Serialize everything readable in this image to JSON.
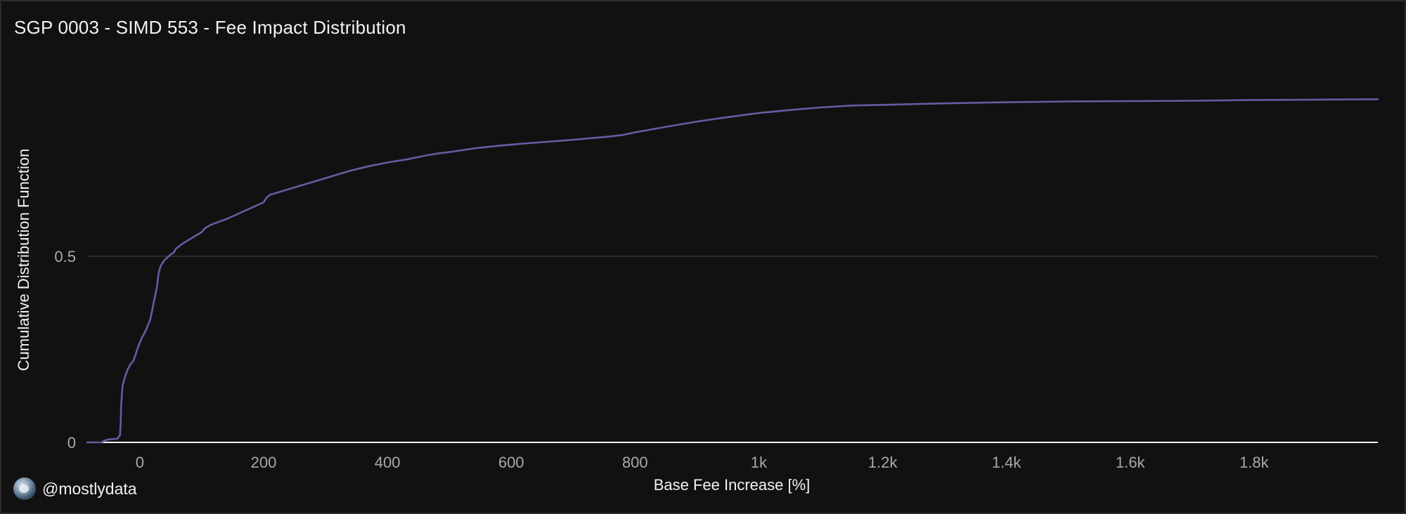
{
  "header": {
    "title": "SGP 0003 - SIMD 553 - Fee Impact Distribution"
  },
  "branding": {
    "handle": "@mostlydata"
  },
  "colors": {
    "background": "#111111",
    "line": "#625ea3",
    "grid": "#3a3a3a",
    "axis": "#f2f2f2",
    "tick_text": "#a9a9a9"
  },
  "chart_data": {
    "type": "line",
    "title": "SGP 0003 - SIMD 553 - Fee Impact Distribution",
    "xlabel": "Base Fee Increase [%]",
    "ylabel": "Cumulative Distribution Function",
    "xlim": [
      -85,
      2000
    ],
    "ylim": [
      0,
      1.0
    ],
    "x_ticks": [
      0,
      200,
      400,
      600,
      800,
      1000,
      1200,
      1400,
      1600,
      1800
    ],
    "x_tick_labels": [
      "0",
      "200",
      "400",
      "600",
      "800",
      "1k",
      "1.2k",
      "1.4k",
      "1.6k",
      "1.8k"
    ],
    "y_ticks": [
      0,
      0.5
    ],
    "y_tick_labels": [
      "0",
      "0.5"
    ],
    "grid": "horizontal",
    "series": [
      {
        "x": [
          -85,
          -62,
          -57,
          -50,
          -36,
          -32,
          -31,
          -30,
          -28,
          -25,
          -22,
          -19,
          -15,
          -10,
          -7,
          -2,
          3,
          8,
          12,
          17,
          23,
          28,
          30,
          32,
          33,
          35,
          40,
          50,
          55,
          58,
          62,
          70,
          80,
          90,
          95,
          100,
          105,
          115,
          140,
          160,
          180,
          200,
          202,
          205,
          210,
          220,
          240,
          260,
          280,
          300,
          320,
          340,
          370,
          400,
          430,
          460,
          480,
          500,
          540,
          580,
          620,
          660,
          700,
          760,
          780,
          800,
          850,
          900,
          950,
          1000,
          1050,
          1100,
          1150,
          1200,
          1300,
          1400,
          1500,
          1600,
          1700,
          1800,
          1900,
          2000
        ],
        "y": [
          0,
          0,
          0.005,
          0.008,
          0.01,
          0.02,
          0.05,
          0.1,
          0.15,
          0.17,
          0.185,
          0.198,
          0.21,
          0.22,
          0.235,
          0.26,
          0.28,
          0.295,
          0.31,
          0.33,
          0.38,
          0.42,
          0.45,
          0.465,
          0.47,
          0.478,
          0.49,
          0.505,
          0.51,
          0.52,
          0.525,
          0.535,
          0.545,
          0.555,
          0.56,
          0.565,
          0.575,
          0.585,
          0.6,
          0.615,
          0.63,
          0.645,
          0.65,
          0.658,
          0.665,
          0.67,
          0.68,
          0.69,
          0.7,
          0.71,
          0.72,
          0.73,
          0.742,
          0.752,
          0.76,
          0.77,
          0.776,
          0.78,
          0.79,
          0.797,
          0.803,
          0.808,
          0.813,
          0.822,
          0.826,
          0.833,
          0.848,
          0.862,
          0.874,
          0.885,
          0.893,
          0.9,
          0.905,
          0.907,
          0.911,
          0.914,
          0.916,
          0.917,
          0.918,
          0.92,
          0.921,
          0.922
        ]
      }
    ]
  }
}
